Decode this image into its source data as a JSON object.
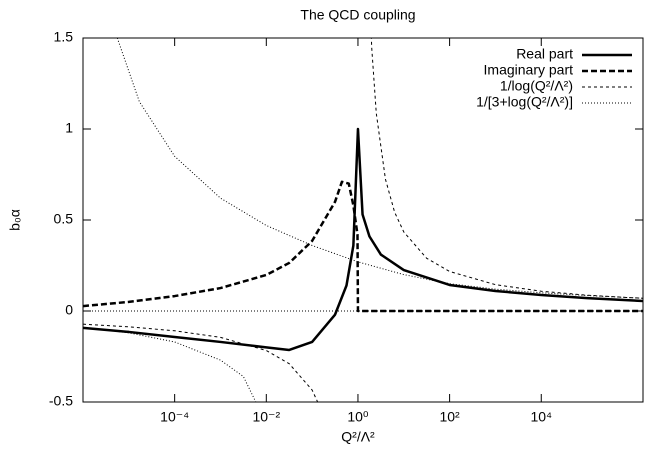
{
  "chart_data": {
    "type": "line",
    "title": "The QCD coupling",
    "x_label": "Q²/Λ²",
    "y_label": "b₀α",
    "log_x": true,
    "zeroaxis": true,
    "legend": "top-right",
    "xlim": [
      1e-06,
      1660000
    ],
    "ylim": [
      -0.5,
      1.5
    ],
    "xticks": [
      {
        "value": 0.0001,
        "label": "10⁻⁴"
      },
      {
        "value": 0.01,
        "label": "10⁻²"
      },
      {
        "value": 1,
        "label": "10⁰"
      },
      {
        "value": 100,
        "label": "10²"
      },
      {
        "value": 10000,
        "label": "10⁴"
      }
    ],
    "yticks": [
      -0.5,
      0,
      0.5,
      1,
      1.5
    ],
    "series": [
      {
        "name": "Real part",
        "color": "#000000",
        "width": 2.5,
        "dash": "none",
        "x": [
          1e-06,
          1e-05,
          0.0001,
          0.001,
          0.01,
          0.0316,
          0.1,
          0.316,
          0.562,
          0.794,
          1,
          1.26,
          1.78,
          3.16,
          10,
          100,
          1000,
          10000,
          100000,
          1660000
        ],
        "values": [
          -0.093,
          -0.115,
          -0.143,
          -0.17,
          -0.2,
          -0.214,
          -0.17,
          -0.02,
          0.14,
          0.36,
          1.0,
          0.53,
          0.41,
          0.31,
          0.225,
          0.143,
          0.11,
          0.088,
          0.071,
          0.055
        ]
      },
      {
        "name": "Imaginary part",
        "color": "#000000",
        "width": 2.5,
        "dash": "6,3",
        "x": [
          1e-06,
          1e-05,
          0.0001,
          0.001,
          0.01,
          0.0316,
          0.1,
          0.316,
          0.447,
          0.631,
          0.794,
          0.977,
          1,
          1660000
        ],
        "values": [
          0.027,
          0.05,
          0.082,
          0.126,
          0.198,
          0.264,
          0.385,
          0.6,
          0.71,
          0.7,
          0.58,
          0.42,
          0,
          0
        ]
      },
      {
        "name": "1/log(Q²/Λ²)",
        "color": "#000000",
        "width": 1,
        "dash": "3,3",
        "x": [
          1e-06,
          1e-05,
          0.0001,
          0.001,
          0.01,
          0.0316,
          0.1,
          0.158,
          0.251,
          null,
          1.585,
          1.995,
          2.512,
          3.981,
          6.31,
          10,
          31.6,
          100,
          1000,
          10000,
          100000,
          1000000,
          1660000
        ],
        "values": [
          -0.0724,
          -0.0869,
          -0.1086,
          -0.1448,
          -0.2171,
          -0.2895,
          -0.4343,
          -0.5429,
          -0.7238,
          null,
          2.171,
          1.448,
          1.086,
          0.7238,
          0.5429,
          0.4343,
          0.2895,
          0.2171,
          0.1448,
          0.1086,
          0.0869,
          0.0724,
          0.07
        ]
      },
      {
        "name": "1/[3+log(Q²/Λ²)]",
        "color": "#000000",
        "width": 1,
        "dash": "1,2",
        "x": [
          1e-06,
          1e-05,
          0.0001,
          0.001,
          0.00316,
          0.0059,
          null,
          5.6e-06,
          1.7e-05,
          0.0001,
          0.001,
          0.01,
          0.1,
          1,
          10,
          100,
          1000,
          10000,
          100000,
          1660000
        ],
        "values": [
          -0.09,
          -0.12,
          -0.17,
          -0.27,
          -0.36,
          -0.5,
          null,
          1.5,
          1.15,
          0.85,
          0.62,
          0.47,
          0.36,
          0.27,
          0.2,
          0.15,
          0.12,
          0.1,
          0.085,
          0.07
        ]
      }
    ]
  }
}
